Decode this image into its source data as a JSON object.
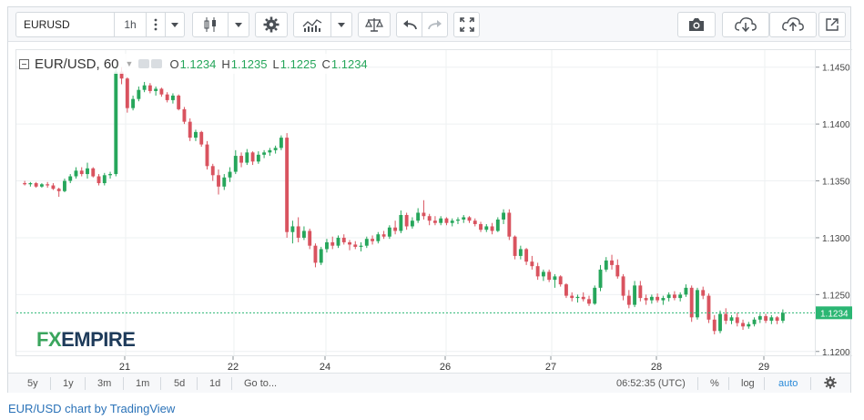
{
  "toolbar": {
    "symbol_value": "EURUSD",
    "interval": "1h",
    "icons": [
      "more-vertical-icon",
      "chevron-down-icon",
      "candles-icon",
      "chevron-down-icon",
      "gear-icon",
      "indicators-icon",
      "chevron-down-icon",
      "compare-scale-icon",
      "undo-icon",
      "redo-icon",
      "fullscreen-icon",
      "camera-icon",
      "cloud-download-icon",
      "cloud-upload-icon",
      "popout-icon"
    ]
  },
  "legend": {
    "symbol": "EUR/USD, 60",
    "o_label": "O",
    "o_value": "1.1234",
    "h_label": "H",
    "h_value": "1.1235",
    "l_label": "L",
    "l_value": "1.1225",
    "c_label": "C",
    "c_value": "1.1234"
  },
  "logo": {
    "fx": "FX",
    "empire": "EMPIRE"
  },
  "last_price": "1.1234",
  "colors": {
    "up": "#26a65b",
    "down": "#d9535f",
    "accent": "#2a72b8",
    "price_tag": "#2bb673"
  },
  "bottombar": {
    "ranges": [
      "5y",
      "1y",
      "3m",
      "1m",
      "5d",
      "1d"
    ],
    "goto": "Go to...",
    "time": "06:52:35 (UTC)",
    "percent": "%",
    "log": "log",
    "auto": "auto"
  },
  "credit": "EUR/USD chart by TradingView",
  "chart_data": {
    "type": "candlestick",
    "interval": "60",
    "ylim": [
      1.1195,
      1.1465
    ],
    "y_ticks": [
      "1.1450",
      "1.1400",
      "1.1350",
      "1.1300",
      "1.1250",
      "1.1200"
    ],
    "x_ticks": [
      "21",
      "22",
      "24",
      "26",
      "27",
      "28",
      "29"
    ],
    "grid": true,
    "ohlc": [
      [
        1.1348,
        1.135,
        1.1346,
        1.1347
      ],
      [
        1.1347,
        1.1349,
        1.1345,
        1.1348
      ],
      [
        1.1348,
        1.1349,
        1.1344,
        1.1345
      ],
      [
        1.1345,
        1.1348,
        1.1344,
        1.1347
      ],
      [
        1.1347,
        1.1349,
        1.1344,
        1.1346
      ],
      [
        1.1346,
        1.1348,
        1.1342,
        1.1343
      ],
      [
        1.1343,
        1.1344,
        1.1336,
        1.1341
      ],
      [
        1.1341,
        1.1352,
        1.134,
        1.135
      ],
      [
        1.135,
        1.1356,
        1.1348,
        1.1354
      ],
      [
        1.1354,
        1.1362,
        1.1352,
        1.1359
      ],
      [
        1.1359,
        1.1362,
        1.1354,
        1.1356
      ],
      [
        1.1356,
        1.1366,
        1.1352,
        1.1361
      ],
      [
        1.1361,
        1.1362,
        1.1353,
        1.1354
      ],
      [
        1.1354,
        1.1356,
        1.1346,
        1.1348
      ],
      [
        1.1348,
        1.1357,
        1.1346,
        1.1355
      ],
      [
        1.1355,
        1.1358,
        1.1352,
        1.1356
      ],
      [
        1.1356,
        1.1452,
        1.1354,
        1.1446
      ],
      [
        1.1446,
        1.145,
        1.1435,
        1.144
      ],
      [
        1.144,
        1.1441,
        1.141,
        1.1414
      ],
      [
        1.1414,
        1.1425,
        1.1412,
        1.1422
      ],
      [
        1.1422,
        1.1433,
        1.142,
        1.143
      ],
      [
        1.143,
        1.1437,
        1.1428,
        1.1434
      ],
      [
        1.1434,
        1.1436,
        1.1427,
        1.1429
      ],
      [
        1.1429,
        1.1433,
        1.1425,
        1.1431
      ],
      [
        1.1431,
        1.1432,
        1.1424,
        1.1426
      ],
      [
        1.1426,
        1.1428,
        1.1419,
        1.1421
      ],
      [
        1.1421,
        1.1427,
        1.1418,
        1.1425
      ],
      [
        1.1425,
        1.1426,
        1.1412,
        1.1413
      ],
      [
        1.1413,
        1.1415,
        1.14,
        1.1402
      ],
      [
        1.1402,
        1.1405,
        1.1385,
        1.1388
      ],
      [
        1.1388,
        1.1395,
        1.1385,
        1.1393
      ],
      [
        1.1393,
        1.1394,
        1.138,
        1.1382
      ],
      [
        1.1382,
        1.1385,
        1.136,
        1.1363
      ],
      [
        1.1363,
        1.1365,
        1.135,
        1.1355
      ],
      [
        1.1355,
        1.136,
        1.1338,
        1.1345
      ],
      [
        1.1345,
        1.1356,
        1.1342,
        1.1353
      ],
      [
        1.1353,
        1.1362,
        1.1349,
        1.1358
      ],
      [
        1.1358,
        1.1377,
        1.1356,
        1.1372
      ],
      [
        1.1372,
        1.1375,
        1.1362,
        1.1366
      ],
      [
        1.1366,
        1.1378,
        1.1364,
        1.1375
      ],
      [
        1.1375,
        1.1376,
        1.1364,
        1.1367
      ],
      [
        1.1367,
        1.1376,
        1.1365,
        1.1373
      ],
      [
        1.1373,
        1.1377,
        1.137,
        1.1375
      ],
      [
        1.1375,
        1.1379,
        1.1372,
        1.1377
      ],
      [
        1.1377,
        1.1381,
        1.1374,
        1.1379
      ],
      [
        1.1379,
        1.139,
        1.1377,
        1.1388
      ],
      [
        1.1388,
        1.1392,
        1.13,
        1.1305
      ],
      [
        1.1305,
        1.1315,
        1.1295,
        1.131
      ],
      [
        1.131,
        1.1318,
        1.1296,
        1.13
      ],
      [
        1.13,
        1.131,
        1.1298,
        1.1306
      ],
      [
        1.1306,
        1.1308,
        1.129,
        1.1293
      ],
      [
        1.1293,
        1.1295,
        1.1274,
        1.1278
      ],
      [
        1.1278,
        1.1292,
        1.1276,
        1.129
      ],
      [
        1.129,
        1.1299,
        1.1287,
        1.1296
      ],
      [
        1.1296,
        1.1301,
        1.129,
        1.1293
      ],
      [
        1.1293,
        1.1302,
        1.1291,
        1.13
      ],
      [
        1.13,
        1.1303,
        1.1294,
        1.1296
      ],
      [
        1.1296,
        1.1298,
        1.1289,
        1.1294
      ],
      [
        1.1294,
        1.1297,
        1.129,
        1.1292
      ],
      [
        1.1292,
        1.1296,
        1.1288,
        1.1293
      ],
      [
        1.1293,
        1.1301,
        1.1291,
        1.1299
      ],
      [
        1.1299,
        1.1302,
        1.1294,
        1.1297
      ],
      [
        1.1297,
        1.1305,
        1.1295,
        1.1303
      ],
      [
        1.1303,
        1.1306,
        1.1299,
        1.1301
      ],
      [
        1.1301,
        1.1311,
        1.1299,
        1.1309
      ],
      [
        1.1309,
        1.1315,
        1.1303,
        1.1306
      ],
      [
        1.1306,
        1.1324,
        1.1304,
        1.132
      ],
      [
        1.132,
        1.1322,
        1.1307,
        1.131
      ],
      [
        1.131,
        1.1318,
        1.1308,
        1.1315
      ],
      [
        1.1315,
        1.1326,
        1.1313,
        1.1322
      ],
      [
        1.1322,
        1.1333,
        1.1316,
        1.1319
      ],
      [
        1.1319,
        1.1321,
        1.1311,
        1.1315
      ],
      [
        1.1315,
        1.1319,
        1.1311,
        1.1313
      ],
      [
        1.1313,
        1.1319,
        1.1311,
        1.1317
      ],
      [
        1.1317,
        1.1318,
        1.1311,
        1.1313
      ],
      [
        1.1313,
        1.1317,
        1.131,
        1.1315
      ],
      [
        1.1315,
        1.1318,
        1.1312,
        1.1316
      ],
      [
        1.1316,
        1.132,
        1.1313,
        1.1318
      ],
      [
        1.1318,
        1.1319,
        1.1313,
        1.1315
      ],
      [
        1.1315,
        1.1317,
        1.131,
        1.1312
      ],
      [
        1.1312,
        1.1314,
        1.1305,
        1.1307
      ],
      [
        1.1307,
        1.1312,
        1.1305,
        1.131
      ],
      [
        1.131,
        1.1313,
        1.1303,
        1.1306
      ],
      [
        1.1306,
        1.1318,
        1.1305,
        1.1316
      ],
      [
        1.1316,
        1.1325,
        1.1312,
        1.1322
      ],
      [
        1.1322,
        1.1325,
        1.1298,
        1.1301
      ],
      [
        1.1301,
        1.1302,
        1.1281,
        1.1284
      ],
      [
        1.1284,
        1.1293,
        1.1281,
        1.129
      ],
      [
        1.129,
        1.1291,
        1.1276,
        1.1279
      ],
      [
        1.1279,
        1.1284,
        1.1272,
        1.1275
      ],
      [
        1.1275,
        1.1278,
        1.1263,
        1.1266
      ],
      [
        1.1266,
        1.1272,
        1.1262,
        1.127
      ],
      [
        1.127,
        1.1272,
        1.1261,
        1.1263
      ],
      [
        1.1263,
        1.1268,
        1.1256,
        1.1266
      ],
      [
        1.1266,
        1.1267,
        1.1257,
        1.1259
      ],
      [
        1.1259,
        1.126,
        1.1247,
        1.1249
      ],
      [
        1.1249,
        1.1252,
        1.1244,
        1.1247
      ],
      [
        1.1247,
        1.125,
        1.1243,
        1.1248
      ],
      [
        1.1248,
        1.1252,
        1.1244,
        1.1246
      ],
      [
        1.1246,
        1.1249,
        1.124,
        1.1242
      ],
      [
        1.1242,
        1.1258,
        1.1241,
        1.1256
      ],
      [
        1.1256,
        1.1276,
        1.1253,
        1.1272
      ],
      [
        1.1272,
        1.1283,
        1.127,
        1.128
      ],
      [
        1.128,
        1.1285,
        1.1272,
        1.1276
      ],
      [
        1.1276,
        1.1281,
        1.1264,
        1.1266
      ],
      [
        1.1266,
        1.1268,
        1.1245,
        1.1249
      ],
      [
        1.1249,
        1.1254,
        1.1238,
        1.1241
      ],
      [
        1.1241,
        1.1262,
        1.1239,
        1.1258
      ],
      [
        1.1258,
        1.1262,
        1.1244,
        1.1247
      ],
      [
        1.1247,
        1.125,
        1.1241,
        1.1245
      ],
      [
        1.1245,
        1.125,
        1.1242,
        1.1248
      ],
      [
        1.1248,
        1.1251,
        1.1243,
        1.1245
      ],
      [
        1.1245,
        1.1249,
        1.1241,
        1.1247
      ],
      [
        1.1247,
        1.1252,
        1.1244,
        1.125
      ],
      [
        1.125,
        1.1253,
        1.1245,
        1.1247
      ],
      [
        1.1247,
        1.1252,
        1.1244,
        1.125
      ],
      [
        1.125,
        1.1259,
        1.1248,
        1.1256
      ],
      [
        1.1256,
        1.1258,
        1.1226,
        1.123
      ],
      [
        1.123,
        1.1256,
        1.1228,
        1.1254
      ],
      [
        1.1254,
        1.1257,
        1.1246,
        1.1249
      ],
      [
        1.1249,
        1.1251,
        1.1225,
        1.1228
      ],
      [
        1.1228,
        1.1232,
        1.1215,
        1.1218
      ],
      [
        1.1218,
        1.1236,
        1.1216,
        1.1233
      ],
      [
        1.1233,
        1.1238,
        1.1224,
        1.1227
      ],
      [
        1.1227,
        1.1232,
        1.1224,
        1.123
      ],
      [
        1.123,
        1.1234,
        1.1222,
        1.1225
      ],
      [
        1.1225,
        1.1228,
        1.1219,
        1.1222
      ],
      [
        1.1222,
        1.1226,
        1.122,
        1.1224
      ],
      [
        1.1224,
        1.123,
        1.1222,
        1.1228
      ],
      [
        1.1228,
        1.1233,
        1.1225,
        1.1231
      ],
      [
        1.1231,
        1.1233,
        1.1225,
        1.1227
      ],
      [
        1.1227,
        1.1232,
        1.1224,
        1.123
      ],
      [
        1.123,
        1.1231,
        1.1224,
        1.1227
      ],
      [
        1.1227,
        1.1237,
        1.1225,
        1.1234
      ]
    ]
  }
}
